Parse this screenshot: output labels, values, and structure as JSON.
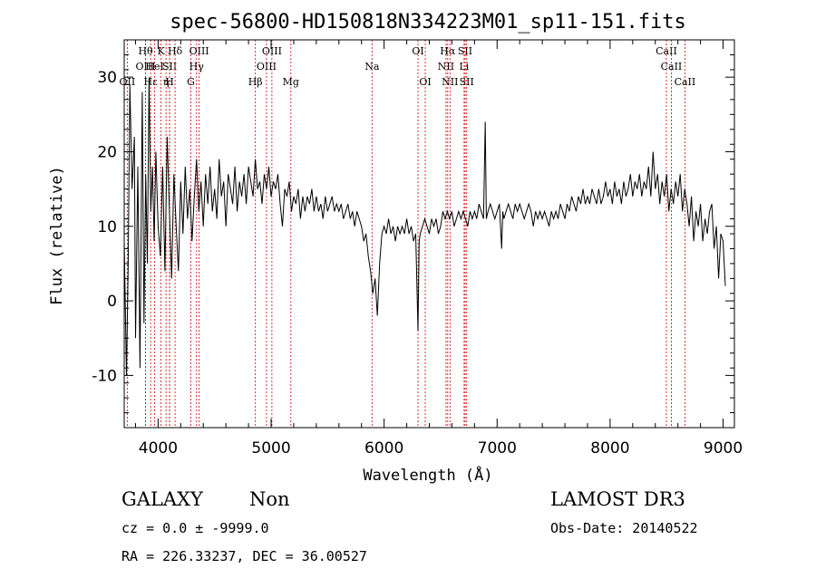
{
  "chart_data": {
    "type": "line",
    "title": "spec-56800-HD150818N334223M01_sp11-151.fits",
    "xlabel": "Wavelength (Å)",
    "ylabel": "Flux (relative)",
    "xlim": [
      3700,
      9100
    ],
    "ylim": [
      -17,
      35
    ],
    "xticks": [
      4000,
      5000,
      6000,
      7000,
      8000,
      9000
    ],
    "yticks": [
      -10,
      0,
      10,
      20,
      30
    ],
    "grid": false,
    "series": [
      {
        "values": [
          [
            3700,
            8
          ],
          [
            3720,
            -10
          ],
          [
            3735,
            5
          ],
          [
            3750,
            29
          ],
          [
            3770,
            15
          ],
          [
            3790,
            22
          ],
          [
            3800,
            -5
          ],
          [
            3820,
            18
          ],
          [
            3840,
            -9
          ],
          [
            3860,
            28
          ],
          [
            3875,
            -3
          ],
          [
            3890,
            17
          ],
          [
            3905,
            5
          ],
          [
            3920,
            30
          ],
          [
            3935,
            12
          ],
          [
            3950,
            18
          ],
          [
            3965,
            8
          ],
          [
            3980,
            20
          ],
          [
            4000,
            10
          ],
          [
            4020,
            6
          ],
          [
            4040,
            18
          ],
          [
            4060,
            4
          ],
          [
            4080,
            22
          ],
          [
            4100,
            12
          ],
          [
            4120,
            3
          ],
          [
            4140,
            17
          ],
          [
            4160,
            10
          ],
          [
            4180,
            4
          ],
          [
            4200,
            16
          ],
          [
            4220,
            9
          ],
          [
            4240,
            18
          ],
          [
            4260,
            11
          ],
          [
            4280,
            15
          ],
          [
            4300,
            8
          ],
          [
            4320,
            14
          ],
          [
            4340,
            19
          ],
          [
            4360,
            12
          ],
          [
            4380,
            16
          ],
          [
            4400,
            10
          ],
          [
            4420,
            17
          ],
          [
            4440,
            13
          ],
          [
            4460,
            18
          ],
          [
            4480,
            12
          ],
          [
            4500,
            15
          ],
          [
            4520,
            11
          ],
          [
            4540,
            19
          ],
          [
            4560,
            14
          ],
          [
            4580,
            16
          ],
          [
            4600,
            10
          ],
          [
            4620,
            17
          ],
          [
            4640,
            15
          ],
          [
            4660,
            13
          ],
          [
            4680,
            18
          ],
          [
            4700,
            12
          ],
          [
            4720,
            16
          ],
          [
            4740,
            14
          ],
          [
            4760,
            17
          ],
          [
            4780,
            13
          ],
          [
            4800,
            18
          ],
          [
            4820,
            16
          ],
          [
            4840,
            14
          ],
          [
            4860,
            19
          ],
          [
            4880,
            15
          ],
          [
            4900,
            16
          ],
          [
            4920,
            13
          ],
          [
            4940,
            17
          ],
          [
            4960,
            15
          ],
          [
            4980,
            18
          ],
          [
            5000,
            14
          ],
          [
            5020,
            16
          ],
          [
            5040,
            15
          ],
          [
            5060,
            17
          ],
          [
            5080,
            13
          ],
          [
            5100,
            10
          ],
          [
            5120,
            15
          ],
          [
            5140,
            14
          ],
          [
            5160,
            16
          ],
          [
            5180,
            12
          ],
          [
            5200,
            14
          ],
          [
            5220,
            13
          ],
          [
            5240,
            15
          ],
          [
            5260,
            11
          ],
          [
            5280,
            14
          ],
          [
            5300,
            12
          ],
          [
            5320,
            14
          ],
          [
            5340,
            13
          ],
          [
            5360,
            15
          ],
          [
            5380,
            12
          ],
          [
            5400,
            14
          ],
          [
            5420,
            12
          ],
          [
            5440,
            13
          ],
          [
            5460,
            11
          ],
          [
            5480,
            14
          ],
          [
            5500,
            12
          ],
          [
            5520,
            13
          ],
          [
            5540,
            14
          ],
          [
            5560,
            12
          ],
          [
            5580,
            13
          ],
          [
            5600,
            12
          ],
          [
            5620,
            13
          ],
          [
            5640,
            11
          ],
          [
            5660,
            12
          ],
          [
            5680,
            13
          ],
          [
            5700,
            11
          ],
          [
            5720,
            12
          ],
          [
            5740,
            10
          ],
          [
            5760,
            12
          ],
          [
            5780,
            11
          ],
          [
            5800,
            10
          ],
          [
            5820,
            8
          ],
          [
            5840,
            9
          ],
          [
            5860,
            6
          ],
          [
            5880,
            4
          ],
          [
            5900,
            1
          ],
          [
            5920,
            3
          ],
          [
            5940,
            -2
          ],
          [
            5960,
            5
          ],
          [
            5980,
            9
          ],
          [
            6000,
            10
          ],
          [
            6020,
            9
          ],
          [
            6040,
            11
          ],
          [
            6060,
            9
          ],
          [
            6080,
            10
          ],
          [
            6100,
            8
          ],
          [
            6120,
            10
          ],
          [
            6140,
            9
          ],
          [
            6160,
            10
          ],
          [
            6180,
            9
          ],
          [
            6200,
            11
          ],
          [
            6220,
            9
          ],
          [
            6240,
            10
          ],
          [
            6260,
            8
          ],
          [
            6280,
            9
          ],
          [
            6300,
            -4
          ],
          [
            6310,
            8
          ],
          [
            6320,
            9
          ],
          [
            6340,
            10
          ],
          [
            6360,
            11
          ],
          [
            6380,
            10
          ],
          [
            6400,
            9
          ],
          [
            6420,
            11
          ],
          [
            6440,
            10
          ],
          [
            6460,
            11
          ],
          [
            6480,
            9
          ],
          [
            6500,
            10
          ],
          [
            6520,
            12
          ],
          [
            6540,
            11
          ],
          [
            6560,
            12
          ],
          [
            6580,
            11
          ],
          [
            6600,
            12
          ],
          [
            6620,
            10
          ],
          [
            6640,
            11
          ],
          [
            6660,
            12
          ],
          [
            6680,
            11
          ],
          [
            6700,
            12
          ],
          [
            6720,
            11
          ],
          [
            6740,
            10
          ],
          [
            6760,
            12
          ],
          [
            6780,
            11
          ],
          [
            6800,
            12
          ],
          [
            6820,
            11
          ],
          [
            6840,
            13
          ],
          [
            6860,
            12
          ],
          [
            6880,
            11
          ],
          [
            6895,
            24
          ],
          [
            6905,
            11
          ],
          [
            6920,
            12
          ],
          [
            6940,
            13
          ],
          [
            6960,
            12
          ],
          [
            6980,
            11
          ],
          [
            7000,
            12
          ],
          [
            7020,
            13
          ],
          [
            7040,
            7
          ],
          [
            7050,
            12
          ],
          [
            7060,
            11
          ],
          [
            7080,
            12
          ],
          [
            7100,
            13
          ],
          [
            7120,
            12
          ],
          [
            7140,
            11
          ],
          [
            7160,
            13
          ],
          [
            7180,
            12
          ],
          [
            7200,
            13
          ],
          [
            7220,
            12
          ],
          [
            7240,
            11
          ],
          [
            7260,
            12
          ],
          [
            7280,
            13
          ],
          [
            7300,
            12
          ],
          [
            7320,
            10
          ],
          [
            7340,
            12
          ],
          [
            7360,
            11
          ],
          [
            7380,
            12
          ],
          [
            7400,
            11
          ],
          [
            7420,
            12
          ],
          [
            7440,
            11
          ],
          [
            7460,
            10
          ],
          [
            7480,
            12
          ],
          [
            7500,
            11
          ],
          [
            7520,
            12
          ],
          [
            7540,
            11
          ],
          [
            7560,
            13
          ],
          [
            7580,
            12
          ],
          [
            7600,
            11
          ],
          [
            7620,
            13
          ],
          [
            7640,
            12
          ],
          [
            7660,
            14
          ],
          [
            7680,
            13
          ],
          [
            7700,
            12
          ],
          [
            7720,
            14
          ],
          [
            7740,
            13
          ],
          [
            7760,
            15
          ],
          [
            7780,
            13
          ],
          [
            7800,
            14
          ],
          [
            7820,
            13
          ],
          [
            7840,
            15
          ],
          [
            7860,
            14
          ],
          [
            7880,
            13
          ],
          [
            7900,
            15
          ],
          [
            7920,
            13
          ],
          [
            7940,
            14
          ],
          [
            7960,
            16
          ],
          [
            7980,
            14
          ],
          [
            8000,
            15
          ],
          [
            8020,
            13
          ],
          [
            8040,
            16
          ],
          [
            8060,
            14
          ],
          [
            8080,
            15
          ],
          [
            8100,
            13
          ],
          [
            8120,
            16
          ],
          [
            8140,
            14
          ],
          [
            8160,
            15
          ],
          [
            8180,
            17
          ],
          [
            8200,
            14
          ],
          [
            8220,
            16
          ],
          [
            8240,
            15
          ],
          [
            8260,
            17
          ],
          [
            8280,
            14
          ],
          [
            8300,
            16
          ],
          [
            8320,
            15
          ],
          [
            8340,
            18
          ],
          [
            8360,
            14
          ],
          [
            8380,
            20
          ],
          [
            8400,
            15
          ],
          [
            8420,
            17
          ],
          [
            8440,
            13
          ],
          [
            8460,
            16
          ],
          [
            8480,
            14
          ],
          [
            8500,
            17
          ],
          [
            8520,
            12
          ],
          [
            8540,
            15
          ],
          [
            8560,
            13
          ],
          [
            8580,
            16
          ],
          [
            8600,
            14
          ],
          [
            8620,
            17
          ],
          [
            8640,
            12
          ],
          [
            8660,
            15
          ],
          [
            8680,
            13
          ],
          [
            8700,
            10
          ],
          [
            8720,
            14
          ],
          [
            8740,
            8
          ],
          [
            8760,
            12
          ],
          [
            8780,
            10
          ],
          [
            8800,
            13
          ],
          [
            8820,
            8
          ],
          [
            8840,
            11
          ],
          [
            8860,
            9
          ],
          [
            8880,
            12
          ],
          [
            8900,
            13
          ],
          [
            8920,
            7
          ],
          [
            8940,
            10
          ],
          [
            8960,
            3
          ],
          [
            8980,
            9
          ],
          [
            9000,
            8
          ],
          [
            9020,
            2
          ]
        ]
      }
    ],
    "lines": [
      {
        "x": 3727,
        "label": "OII",
        "row": 2
      },
      {
        "x": 3889,
        "label": "Hθ",
        "row": 0
      },
      {
        "x": 3889,
        "label": "OIII",
        "row": 1
      },
      {
        "x": 3934,
        "label": "Hε",
        "row": 2
      },
      {
        "x": 3970,
        "label": "HeI",
        "row": 1
      },
      {
        "x": 4026,
        "label": "K",
        "row": 0
      },
      {
        "x": 4070,
        "label": "η",
        "row": 2
      },
      {
        "x": 4102,
        "label": "SII",
        "row": 1
      },
      {
        "x": 4102,
        "label": "H",
        "row": 2
      },
      {
        "x": 4150,
        "label": "Hδ",
        "row": 0
      },
      {
        "x": 4290,
        "label": "G",
        "row": 2
      },
      {
        "x": 4340,
        "label": "Hγ",
        "row": 1
      },
      {
        "x": 4363,
        "label": "OIII",
        "row": 0
      },
      {
        "x": 4861,
        "label": "Hβ",
        "row": 2
      },
      {
        "x": 4959,
        "label": "OIII",
        "row": 1
      },
      {
        "x": 5007,
        "label": "OIII",
        "row": 0
      },
      {
        "x": 5175,
        "label": "Mg",
        "row": 2
      },
      {
        "x": 5893,
        "label": "Na",
        "row": 1
      },
      {
        "x": 6300,
        "label": "OI",
        "row": 0
      },
      {
        "x": 6364,
        "label": "OI",
        "row": 2
      },
      {
        "x": 6548,
        "label": "NII",
        "row": 1
      },
      {
        "x": 6563,
        "label": "Hα",
        "row": 0
      },
      {
        "x": 6583,
        "label": "NII",
        "row": 2
      },
      {
        "x": 6717,
        "label": "SII",
        "row": 0
      },
      {
        "x": 6708,
        "label": "Li",
        "row": 1
      },
      {
        "x": 6731,
        "label": "SII",
        "row": 2
      },
      {
        "x": 8498,
        "label": "CaII",
        "row": 0
      },
      {
        "x": 8542,
        "label": "CaII",
        "row": 1
      },
      {
        "x": 8662,
        "label": "CaII",
        "row": 2
      }
    ]
  },
  "info": {
    "class_label": "GALAXY",
    "subclass_label": "Non",
    "survey": "LAMOST DR3",
    "cz_text": "cz = 0.0 ± -9999.0",
    "obs_date_text": "Obs-Date: 20140522",
    "coords_text": "RA = 226.33237, DEC =  36.00527"
  },
  "colors": {
    "axis": "#000000",
    "spectrum": "#000000",
    "marker_lines": "#cc0000",
    "background": "#ffffff"
  }
}
